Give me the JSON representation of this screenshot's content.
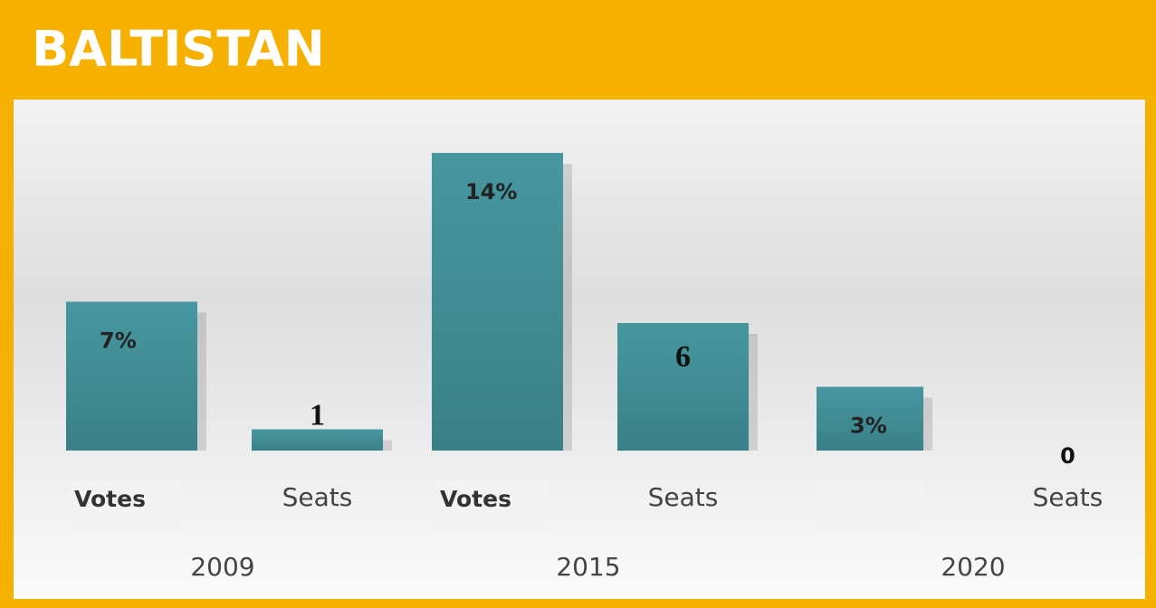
{
  "chart_data": {
    "type": "bar",
    "title": "BALTISTAN",
    "categories": [
      "2009",
      "2015",
      "2020"
    ],
    "series": [
      {
        "name": "Votes",
        "color": "#3f8f96",
        "values": [
          7,
          14,
          3
        ],
        "value_labels": [
          "7%",
          "14%",
          "3%"
        ]
      },
      {
        "name": "Seats",
        "color": "#3f8f96",
        "values": [
          1,
          6,
          0
        ]
      }
    ]
  }
}
